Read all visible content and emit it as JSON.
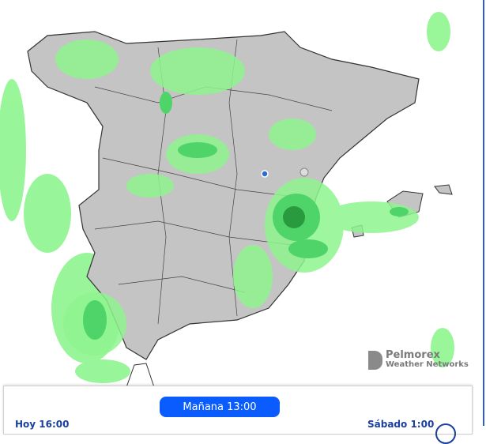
{
  "brand": {
    "line1": "Pelmorex",
    "line2": "Weather Networks"
  },
  "timeline": {
    "current": "Mañana 13:00",
    "start": "Hoy 16:00",
    "end": "Sábado 1:00"
  },
  "colors": {
    "land": "#c4c4c4",
    "precip_light": "#8ef58e",
    "precip_mid": "#4fd46a",
    "precip_heavy": "#2a9a3e",
    "accent": "#0a5cff"
  },
  "icons": [
    "weather-station-icon",
    "sun-icon"
  ]
}
